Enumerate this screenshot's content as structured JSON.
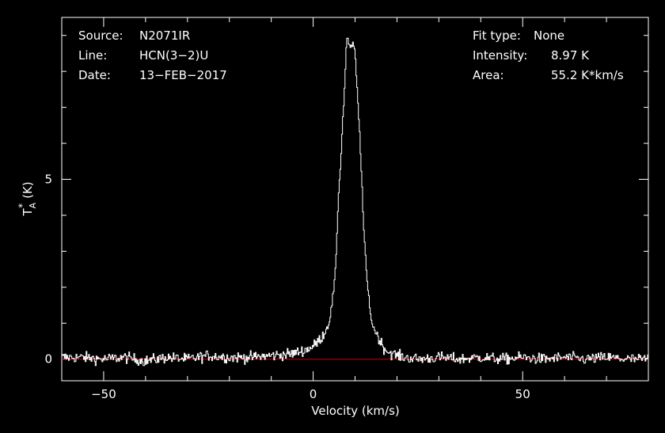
{
  "colors": {
    "background": "#000000",
    "foreground": "#ffffff",
    "baseline": "#cc0000"
  },
  "header_left": [
    {
      "label": "Source:",
      "value": "N2071IR"
    },
    {
      "label": "Line:",
      "value": "HCN(3−2)U"
    },
    {
      "label": "Date:",
      "value": "13−FEB−2017"
    }
  ],
  "header_right": [
    {
      "label": "Fit type:",
      "value": "None"
    },
    {
      "label": "Intensity:",
      "value": "8.97 K"
    },
    {
      "label": "Area:",
      "value": "55.2 K*km/s"
    }
  ],
  "chart_data": {
    "type": "line",
    "title": "",
    "xlabel": "Velocity (km/s)",
    "ylabel_main": "T",
    "ylabel_sub": "A",
    "ylabel_sup": "*",
    "ylabel_unit": "(K)",
    "xlim": [
      -60,
      80
    ],
    "ylim": [
      -0.6,
      9.5
    ],
    "xticks": [
      -50,
      0,
      50
    ],
    "xtick_labels": [
      "−50",
      "0",
      "50"
    ],
    "yticks": [
      0,
      5
    ],
    "ytick_labels": [
      "0",
      "5"
    ],
    "grid": false,
    "baseline": 0,
    "series": [
      {
        "x": [
          -60,
          -55,
          -50,
          -45,
          -40,
          -35,
          -30,
          -25,
          -20,
          -15,
          -10,
          -5,
          -2,
          0,
          2,
          3,
          4,
          5,
          5.5,
          6,
          6.5,
          7,
          7.5,
          8,
          8.5,
          9,
          9.5,
          10,
          10.5,
          11,
          11.5,
          12,
          12.5,
          13,
          13.5,
          14,
          15,
          16,
          17,
          18,
          19,
          20,
          22,
          25,
          30,
          35,
          40,
          45,
          50,
          55,
          60,
          65,
          70,
          75,
          80
        ],
        "y": [
          0.05,
          0.05,
          0.0,
          0.05,
          -0.05,
          0.05,
          0.0,
          0.1,
          0.05,
          0.05,
          0.1,
          0.15,
          0.25,
          0.35,
          0.6,
          0.8,
          1.1,
          2.0,
          2.8,
          4.5,
          5.3,
          6.5,
          7.5,
          8.97,
          8.8,
          8.6,
          8.8,
          8.5,
          7.5,
          6.5,
          5.3,
          3.8,
          2.8,
          2.0,
          1.5,
          1.0,
          0.75,
          0.5,
          0.3,
          0.2,
          0.15,
          0.1,
          0.05,
          0.0,
          0.05,
          0.0,
          0.05,
          0.0,
          0.05,
          0.0,
          0.05,
          0.0,
          0.05,
          0.0,
          0.0
        ]
      }
    ]
  }
}
